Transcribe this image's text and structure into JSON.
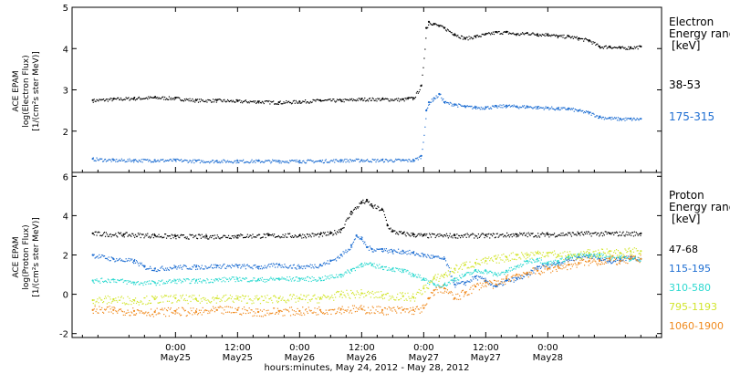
{
  "chart_data": [
    {
      "type": "scatter",
      "panel": "electron",
      "ylabel_lines": [
        "ACE EPAM",
        "log(Electron Flux)",
        "[1/(cm²s ster MeV)]"
      ],
      "ylim": [
        1,
        5
      ],
      "yticks": [
        2,
        3,
        4,
        5
      ],
      "legend_title_lines": [
        "Electron",
        "Energy ranges",
        "[keV]"
      ],
      "series": [
        {
          "name": "38-53",
          "color": "#000000",
          "x": [
            -16,
            -12,
            -8,
            -4,
            0,
            4,
            8,
            12,
            16,
            20,
            24,
            28,
            32,
            36,
            40,
            44,
            45,
            46,
            47.5,
            48.5,
            49,
            50,
            51,
            52,
            54,
            56,
            58,
            60,
            62,
            64,
            66,
            68,
            70,
            72,
            74,
            76,
            78,
            80,
            82,
            84,
            86,
            88,
            90
          ],
          "y": [
            2.75,
            2.78,
            2.8,
            2.82,
            2.8,
            2.75,
            2.75,
            2.73,
            2.72,
            2.7,
            2.72,
            2.75,
            2.75,
            2.78,
            2.78,
            2.77,
            2.8,
            2.8,
            3.1,
            4.5,
            4.65,
            4.6,
            4.55,
            4.5,
            4.35,
            4.25,
            4.3,
            4.35,
            4.4,
            4.4,
            4.35,
            4.38,
            4.35,
            4.35,
            4.3,
            4.3,
            4.25,
            4.2,
            4.05,
            4.05,
            4.02,
            4.03,
            4.05
          ]
        },
        {
          "name": "175-315",
          "color": "#1e6ed2",
          "x": [
            -16,
            -12,
            -8,
            -4,
            0,
            4,
            8,
            12,
            16,
            20,
            24,
            28,
            32,
            36,
            40,
            44,
            46,
            47.5,
            48.5,
            49,
            50,
            51,
            52,
            54,
            56,
            58,
            60,
            62,
            64,
            66,
            68,
            70,
            72,
            74,
            76,
            78,
            80,
            82,
            84,
            86,
            88,
            90
          ],
          "y": [
            1.33,
            1.3,
            1.3,
            1.3,
            1.3,
            1.28,
            1.28,
            1.28,
            1.28,
            1.28,
            1.28,
            1.28,
            1.3,
            1.3,
            1.3,
            1.3,
            1.3,
            1.4,
            2.5,
            2.7,
            2.8,
            2.9,
            2.7,
            2.65,
            2.6,
            2.58,
            2.58,
            2.6,
            2.62,
            2.6,
            2.6,
            2.58,
            2.57,
            2.55,
            2.55,
            2.5,
            2.45,
            2.35,
            2.32,
            2.3,
            2.3,
            2.3
          ]
        }
      ]
    },
    {
      "type": "scatter",
      "panel": "proton",
      "ylabel_lines": [
        "ACE EPAM",
        "log(Proton Flux)",
        "[1/(cm²s ster MeV)]"
      ],
      "ylim": [
        -2.2,
        6.2
      ],
      "yticks": [
        -2,
        0,
        2,
        4,
        6
      ],
      "legend_title_lines": [
        "Proton",
        "Energy ranges",
        "[keV]"
      ],
      "series": [
        {
          "name": "47-68",
          "color": "#000000",
          "x": [
            -16,
            -10,
            -4,
            0,
            6,
            12,
            18,
            24,
            28,
            30,
            32,
            34,
            36,
            37,
            38,
            40,
            41,
            42,
            44,
            46,
            48,
            54,
            60,
            66,
            72,
            78,
            84,
            90
          ],
          "y": [
            3.1,
            3.05,
            3.0,
            2.95,
            2.95,
            2.98,
            3.0,
            3.0,
            3.05,
            3.1,
            3.3,
            4.2,
            4.7,
            4.75,
            4.5,
            4.3,
            3.5,
            3.2,
            3.1,
            3.05,
            3.0,
            3.0,
            3.0,
            3.05,
            3.05,
            3.1,
            3.1,
            3.1
          ]
        },
        {
          "name": "115-195",
          "color": "#1e6ed2",
          "x": [
            -16,
            -12,
            -8,
            -6,
            -4,
            0,
            4,
            8,
            12,
            16,
            20,
            24,
            28,
            30,
            32,
            34,
            35,
            36,
            37,
            38,
            40,
            42,
            44,
            46,
            48,
            50,
            52,
            54,
            56,
            58,
            60,
            62,
            64,
            66,
            68,
            70,
            72,
            74,
            76,
            78,
            80,
            82,
            84,
            86,
            88,
            90
          ],
          "y": [
            2.0,
            1.8,
            1.7,
            1.4,
            1.3,
            1.4,
            1.4,
            1.45,
            1.45,
            1.4,
            1.5,
            1.4,
            1.5,
            1.7,
            2.0,
            2.5,
            3.0,
            2.8,
            2.4,
            2.3,
            2.3,
            2.2,
            2.2,
            2.1,
            2.0,
            1.9,
            1.8,
            0.5,
            0.6,
            0.9,
            0.7,
            0.4,
            0.7,
            0.8,
            1.0,
            1.4,
            1.5,
            1.6,
            1.8,
            1.9,
            2.0,
            1.8,
            1.7,
            1.8,
            1.9,
            1.8
          ]
        },
        {
          "name": "310-580",
          "color": "#2ed9d0",
          "x": [
            -16,
            -12,
            -8,
            -4,
            0,
            4,
            8,
            12,
            16,
            20,
            24,
            28,
            32,
            34,
            36,
            38,
            40,
            42,
            44,
            46,
            48,
            50,
            52,
            54,
            56,
            58,
            60,
            62,
            64,
            66,
            68,
            70,
            72,
            74,
            76,
            78,
            80,
            82,
            84,
            86,
            88,
            90
          ],
          "y": [
            0.7,
            0.75,
            0.6,
            0.6,
            0.7,
            0.7,
            0.75,
            0.8,
            0.75,
            0.8,
            0.8,
            0.8,
            1.0,
            1.25,
            1.55,
            1.5,
            1.4,
            1.3,
            1.2,
            1.0,
            0.8,
            0.5,
            0.5,
            0.8,
            1.0,
            1.2,
            1.2,
            1.0,
            1.2,
            1.4,
            1.7,
            1.8,
            1.6,
            1.7,
            1.9,
            2.0,
            2.0,
            2.0,
            1.9,
            1.9,
            1.8,
            1.8
          ]
        },
        {
          "name": "795-1193",
          "color": "#d2e52d",
          "x": [
            -16,
            -12,
            -8,
            -4,
            0,
            4,
            8,
            12,
            16,
            20,
            24,
            28,
            32,
            36,
            40,
            44,
            46,
            48,
            50,
            52,
            54,
            56,
            58,
            60,
            62,
            64,
            66,
            68,
            70,
            72,
            74,
            76,
            78,
            80,
            82,
            84,
            86,
            88,
            90
          ],
          "y": [
            -0.3,
            -0.25,
            -0.3,
            -0.25,
            -0.2,
            -0.25,
            -0.2,
            -0.2,
            -0.25,
            -0.2,
            -0.2,
            -0.2,
            0.0,
            0.05,
            -0.05,
            -0.1,
            -0.15,
            0.3,
            0.8,
            1.0,
            1.3,
            1.5,
            1.6,
            1.7,
            1.8,
            1.9,
            2.0,
            2.0,
            2.1,
            2.1,
            2.0,
            2.0,
            2.0,
            2.1,
            2.1,
            2.2,
            2.1,
            2.2,
            2.2
          ]
        },
        {
          "name": "1060-1900",
          "color": "#f08a1e",
          "x": [
            -16,
            -12,
            -8,
            -4,
            0,
            4,
            8,
            12,
            16,
            20,
            24,
            28,
            32,
            36,
            40,
            44,
            46,
            48,
            49,
            50,
            52,
            54,
            56,
            58,
            60,
            62,
            64,
            66,
            68,
            70,
            72,
            74,
            76,
            78,
            80,
            82,
            84,
            86,
            88,
            90
          ],
          "y": [
            -0.8,
            -0.8,
            -0.85,
            -0.9,
            -0.85,
            -0.9,
            -0.8,
            -0.8,
            -0.9,
            -0.85,
            -0.85,
            -0.8,
            -0.75,
            -0.75,
            -0.8,
            -0.8,
            -0.8,
            -0.7,
            -0.2,
            0.2,
            0.3,
            -0.2,
            0.1,
            0.4,
            0.6,
            0.5,
            0.8,
            1.0,
            1.1,
            1.2,
            1.3,
            1.4,
            1.5,
            1.6,
            1.7,
            1.7,
            1.8,
            1.7,
            1.8,
            1.8
          ]
        }
      ]
    }
  ],
  "x_axis": {
    "tick_times": [
      "0:00",
      "12:00",
      "0:00",
      "12:00",
      "0:00",
      "12:00",
      "0:00"
    ],
    "tick_dates": [
      "May25",
      "May25",
      "May26",
      "May26",
      "May27",
      "May27",
      "May28"
    ],
    "tick_hours": [
      0,
      12,
      24,
      36,
      48,
      60,
      72
    ],
    "xlim": [
      -20,
      94
    ],
    "label": "hours:minutes, May 24, 2012 - May 28, 2012"
  }
}
